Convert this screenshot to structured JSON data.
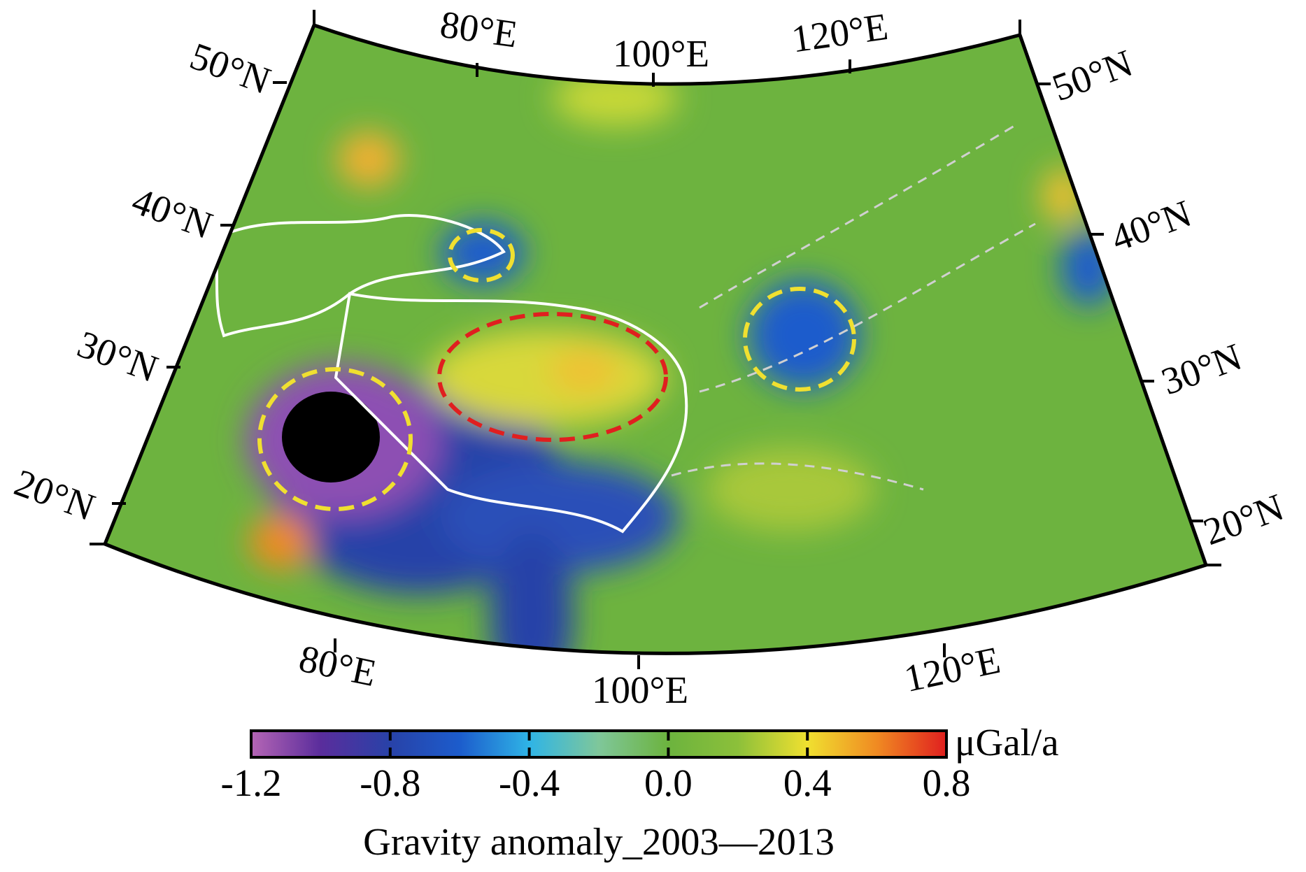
{
  "map": {
    "top_lon_labels": [
      "80°E",
      "100°E",
      "120°E"
    ],
    "bottom_lon_labels": [
      "80°E",
      "100°E",
      "120°E"
    ],
    "left_lat_labels": [
      "50°N",
      "40°N",
      "30°N",
      "20°N"
    ],
    "right_lat_labels": [
      "50°N",
      "40°N",
      "30°N",
      "20°N"
    ]
  },
  "colorbar": {
    "lim": [
      -1.2,
      0.8
    ],
    "ticks": [
      -1.2,
      -0.8,
      -0.4,
      {
        "value": 0,
        "label": "0.0"
      },
      0.4,
      0.8
    ],
    "unit": "μGal/a",
    "colors": [
      "#b565b5",
      "#5a2d9c",
      "#2842a8",
      "#1c5ccc",
      "#2fb4e6",
      "#7fc79a",
      "#6cb33e",
      "#8cc03a",
      "#f0e030",
      "#f08a22",
      "#e01f1f"
    ],
    "title": "Gravity anomaly_2003—2013"
  }
}
